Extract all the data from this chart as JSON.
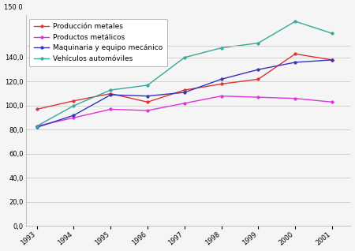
{
  "years": [
    1993,
    1994,
    1995,
    1996,
    1997,
    1998,
    1999,
    2000,
    2001
  ],
  "produccion_metales": [
    97,
    104,
    110,
    103,
    113,
    118,
    122,
    143,
    138
  ],
  "productos_metalicos": [
    83,
    90,
    97,
    96,
    102,
    108,
    107,
    106,
    103
  ],
  "maquinaria_equipo": [
    82,
    92,
    109,
    108,
    111,
    122,
    130,
    136,
    138
  ],
  "vehiculos": [
    83,
    100,
    113,
    117,
    140,
    148,
    152,
    170,
    160
  ],
  "legend_labels": [
    "Producción metales",
    "Productos metálicos",
    "Maquinaria y equipo mecánico",
    "Vehículos automóviles"
  ],
  "line_colors": [
    "#dd3333",
    "#dd33dd",
    "#3333bb",
    "#33aa99"
  ],
  "marker_size": 2.5,
  "line_width": 1.0,
  "ylim_min": 0,
  "ylim_max": 152,
  "yticks": [
    0,
    20,
    40,
    60,
    80,
    100,
    120,
    140
  ],
  "ytick_top_label": "150 0",
  "ytick_labels": [
    "0,0",
    "20,0",
    "40,0",
    "60,0",
    "80,0",
    "100,0",
    "120,0",
    "140,0"
  ],
  "background_color": "#f5f5f5",
  "grid_color": "#cccccc",
  "legend_fontsize": 6.5,
  "tick_fontsize": 6.0
}
